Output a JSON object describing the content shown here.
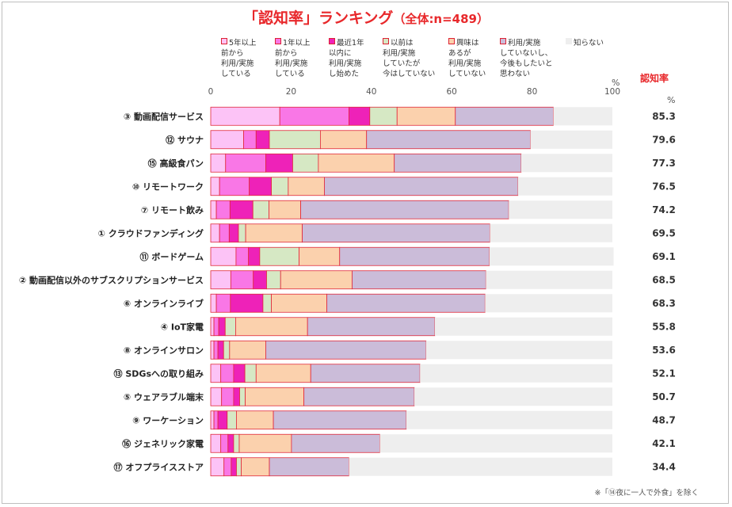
{
  "title": "「認知率」ランキング",
  "subtitle": "（全体:n=489）",
  "unit_pct": "%",
  "rate_header": "認知率",
  "rate_unit": "%",
  "footnote": "※「⑭夜に一人で外食」を除く",
  "chart_data": {
    "type": "bar",
    "orientation": "horizontal",
    "stacked": true,
    "xlim": [
      0,
      100
    ],
    "xticks": [
      "0",
      "20",
      "40",
      "60",
      "80",
      "100"
    ],
    "legend_position": "top",
    "colors": [
      "#fcc3f6",
      "#f977e6",
      "#ee22b8",
      "#d6e8c4",
      "#fbd1ad",
      "#cbbcd9",
      "#eeeeee"
    ],
    "series": [
      {
        "name": "5年以上\n前から\n利用/実施\nしている",
        "values": [
          17.2,
          8.2,
          3.7,
          2.2,
          1.4,
          2.2,
          6.3,
          5.0,
          1.4,
          0.8,
          0.8,
          2.5,
          2.7,
          0.8,
          2.5,
          3.3
        ]
      },
      {
        "name": "1年以上\n前から\n利用/実施\nしている",
        "values": [
          17.2,
          3.1,
          10.0,
          7.4,
          3.4,
          2.4,
          3.1,
          5.6,
          3.5,
          1.2,
          1.0,
          3.2,
          3.0,
          1.0,
          1.8,
          1.8
        ]
      },
      {
        "name": "最近1年\n以内に\n利用/実施\nし始めた",
        "values": [
          5.2,
          3.3,
          6.7,
          5.5,
          5.7,
          2.3,
          2.8,
          3.3,
          8.1,
          1.6,
          1.4,
          2.8,
          1.5,
          2.3,
          1.4,
          1.3
        ]
      },
      {
        "name": "以前は\n利用/実施\nしていたが\n今はしていない",
        "values": [
          6.8,
          12.7,
          6.4,
          4.2,
          4.0,
          1.8,
          9.8,
          3.5,
          2.1,
          2.6,
          1.5,
          2.8,
          1.4,
          2.3,
          1.4,
          1.2
        ]
      },
      {
        "name": "興味は\nあるが\n利用/実施\nしていない",
        "values": [
          14.5,
          11.5,
          18.9,
          9.0,
          7.9,
          14.1,
          10.1,
          17.8,
          13.8,
          17.9,
          9.0,
          13.6,
          14.6,
          9.2,
          13.0,
          7.0
        ]
      },
      {
        "name": "利用/実施\nしていないし、\n今後もしたいと\n思わない",
        "values": [
          24.4,
          40.8,
          31.6,
          48.2,
          51.8,
          46.7,
          37.3,
          33.3,
          39.4,
          31.7,
          39.9,
          27.2,
          27.5,
          33.1,
          22.0,
          19.8
        ]
      },
      {
        "name": "知らない",
        "values": [
          14.7,
          20.4,
          22.7,
          23.5,
          25.8,
          30.5,
          30.9,
          31.5,
          31.7,
          44.2,
          46.4,
          47.9,
          49.3,
          51.3,
          57.9,
          65.6
        ]
      }
    ],
    "categories": [
      "③ 動画配信サービス",
      "⑫ サウナ",
      "⑮ 高級食パン",
      "⑩ リモートワーク",
      "⑦ リモート飲み",
      "① クラウドファンディング",
      "⑪ ボードゲーム",
      "② 動画配信以外のサブスクリプションサービス",
      "⑥ オンラインライブ",
      "④ IoT家電",
      "⑧ オンラインサロン",
      "⑬ SDGsへの取り組み",
      "⑤ ウェアラブル端末",
      "⑨ ワーケーション",
      "⑯ ジェネリック家電",
      "⑰ オフプライスストア"
    ],
    "awareness_rate": [
      "85.3",
      "79.6",
      "77.3",
      "76.5",
      "74.2",
      "69.5",
      "69.1",
      "68.5",
      "68.3",
      "55.8",
      "53.6",
      "52.1",
      "50.7",
      "48.7",
      "42.1",
      "34.4"
    ]
  }
}
